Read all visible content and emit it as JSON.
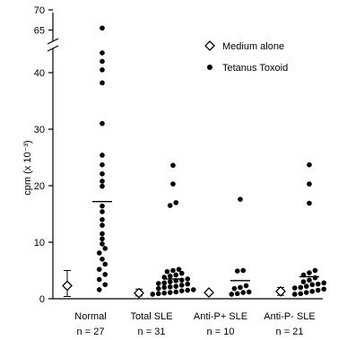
{
  "chart_data": {
    "type": "scatter",
    "ylabel": "cpm (x 10⁻³)",
    "ylim": [
      0,
      70
    ],
    "y_break": [
      45,
      65
    ],
    "lower_ticks": [
      0,
      10,
      20,
      30,
      40
    ],
    "upper_ticks": [
      65,
      70
    ],
    "categories": [
      "Normal",
      "Total SLE",
      "Anti-P+ SLE",
      "Anti-P- SLE"
    ],
    "n_labels": [
      "n = 27",
      "n = 31",
      "n = 10",
      "n = 21"
    ],
    "legend": {
      "medium": "Medium alone",
      "tetanus": "Tetanus Toxoid"
    },
    "medium_alone": [
      {
        "category": "Normal",
        "mean": 2.3,
        "error_upper": 5.0,
        "error_lower": 0.4
      },
      {
        "category": "Total SLE",
        "mean": 1.0,
        "error_upper": 1.7,
        "error_lower": 0.5
      },
      {
        "category": "Anti-P+ SLE",
        "mean": 1.1,
        "error_upper": 1.3,
        "error_lower": 0.9
      },
      {
        "category": "Anti-P- SLE",
        "mean": 1.3,
        "error_upper": 2.0,
        "error_lower": 0.6
      }
    ],
    "tetanus_toxoid": [
      {
        "category": "Normal",
        "mean": 17.2,
        "values": [
          65.5,
          43.5,
          42.0,
          40.5,
          38.2,
          31.0,
          25.4,
          23.7,
          22.1,
          20.8,
          19.9,
          16.4,
          15.4,
          14.0,
          13.0,
          11.5,
          10.6,
          9.7,
          8.9,
          8.1,
          7.0,
          6.1,
          5.2,
          4.3,
          3.4,
          2.5,
          1.6
        ]
      },
      {
        "category": "Total SLE",
        "mean": 3.5,
        "values": [
          23.6,
          20.3,
          17.0,
          16.5,
          5.2,
          5.0,
          4.8,
          4.5,
          4.2,
          4.0,
          3.8,
          3.5,
          3.2,
          3.0,
          2.8,
          2.6,
          2.4,
          2.2,
          2.0,
          1.8,
          1.6,
          1.4,
          1.2,
          1.0,
          0.9,
          0.8,
          2.1,
          2.7,
          3.3,
          1.5,
          1.1
        ]
      },
      {
        "category": "Anti-P+ SLE",
        "mean": 3.2,
        "values": [
          17.6,
          5.0,
          4.9,
          2.3,
          2.0,
          1.8,
          1.2,
          1.1,
          0.9,
          0.8
        ]
      },
      {
        "category": "Anti-P- SLE",
        "mean": 3.9,
        "values": [
          23.7,
          20.3,
          16.9,
          5.0,
          4.6,
          4.2,
          3.7,
          3.3,
          3.0,
          2.8,
          2.5,
          2.2,
          2.0,
          1.7,
          1.5,
          1.3,
          1.1,
          0.9,
          0.8,
          2.6,
          1.9
        ]
      }
    ]
  }
}
